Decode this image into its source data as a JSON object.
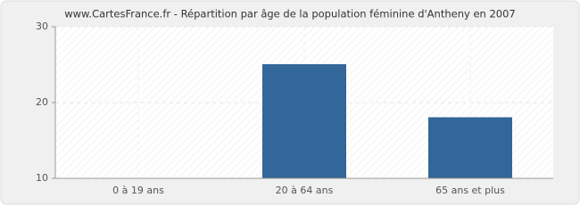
{
  "chart_data": {
    "type": "bar",
    "title": "www.CartesFrance.fr - Répartition par âge de la population féminine d'Antheny en 2007",
    "categories": [
      "0 à 19 ans",
      "20 à 64 ans",
      "65 ans et plus"
    ],
    "values": [
      10,
      25,
      18
    ],
    "color": "#336699",
    "ylim": [
      10,
      30
    ],
    "yticks": [
      10,
      20,
      30
    ],
    "grid": true
  }
}
